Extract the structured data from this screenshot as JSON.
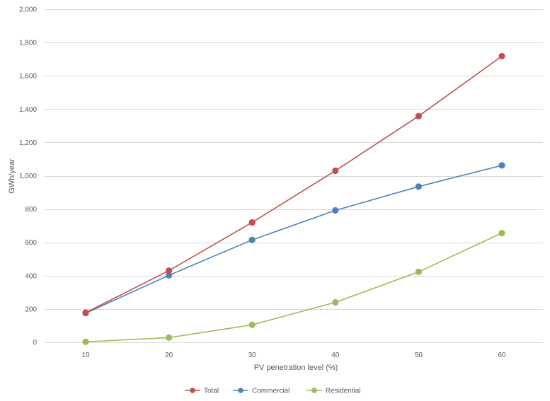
{
  "chart_data": {
    "type": "line",
    "title": "",
    "xlabel": "PV penetration level (%)",
    "ylabel": "GWh/year",
    "x": [
      10,
      20,
      30,
      40,
      50,
      60
    ],
    "x_tick_labels": [
      "10",
      "20",
      "30",
      "40",
      "50",
      "60"
    ],
    "ylim": [
      0,
      2000
    ],
    "y_ticks": [
      0,
      200,
      400,
      600,
      800,
      1000,
      1200,
      1400,
      1600,
      1800,
      2000
    ],
    "y_tick_labels": [
      "0",
      "200",
      "400",
      "600",
      "800",
      "1,000",
      "1,200",
      "1,400",
      "1,600",
      "1,800",
      "2,000"
    ],
    "grid": true,
    "legend_position": "bottom",
    "series": [
      {
        "name": "Total",
        "color": "#c0504d",
        "values": [
          178,
          430,
          720,
          1030,
          1358,
          1718
        ]
      },
      {
        "name": "Commercial",
        "color": "#4f81bd",
        "values": [
          175,
          402,
          615,
          792,
          935,
          1062
        ]
      },
      {
        "name": "Residential",
        "color": "#9bbb59",
        "values": [
          3,
          28,
          105,
          240,
          423,
          656
        ]
      }
    ]
  }
}
